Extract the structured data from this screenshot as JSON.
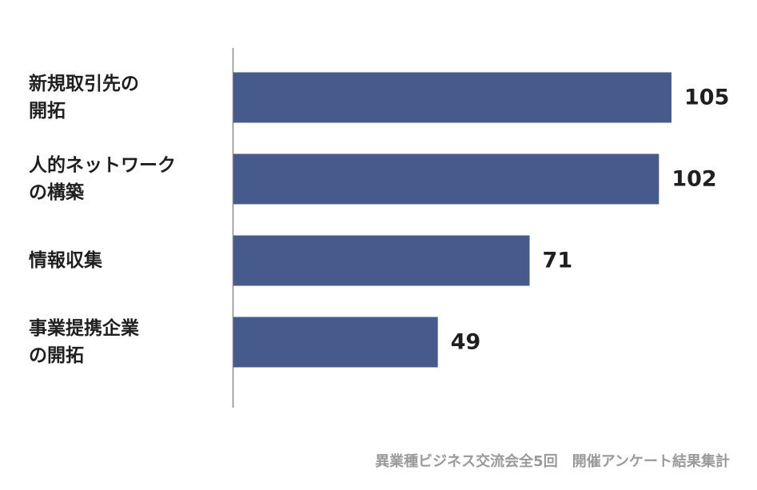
{
  "chart_data": {
    "type": "bar",
    "orientation": "horizontal",
    "categories": [
      "新規取引先の\n開拓",
      "人的ネットワーク\nの構築",
      "情報収集",
      "事業提携企業\nの開拓"
    ],
    "values": [
      105,
      102,
      71,
      49
    ],
    "title": "",
    "xlabel": "",
    "ylabel": "",
    "xlim": [
      0,
      112
    ],
    "grid": false,
    "legend": "none",
    "data_labels": true,
    "bar_color": "#475a8c",
    "caption": "異業種ビジネス交流会全5回　開催アンケート結果集計"
  }
}
